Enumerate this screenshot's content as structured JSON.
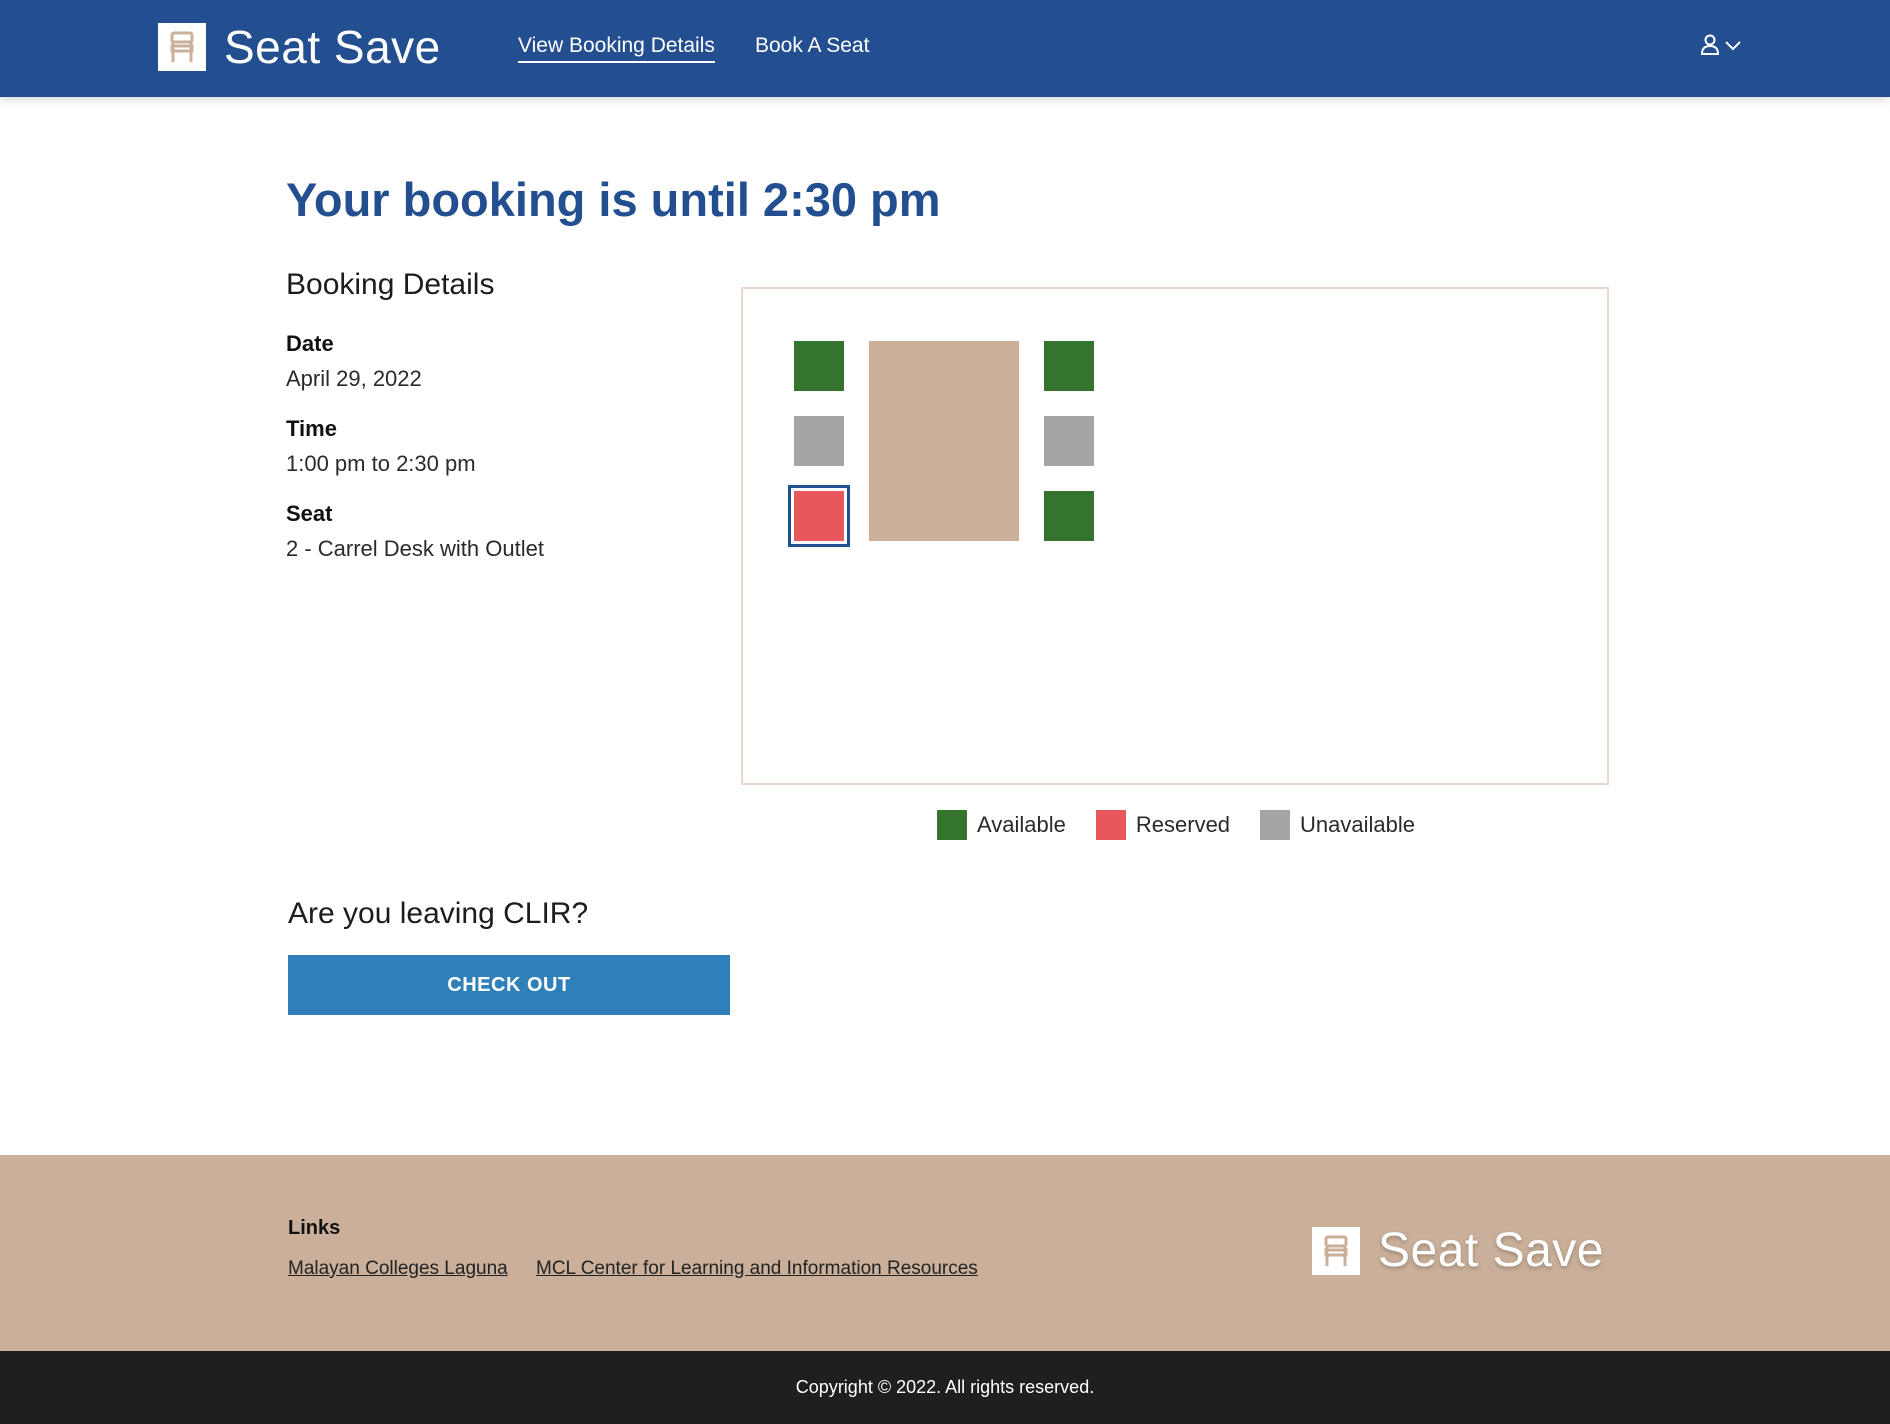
{
  "header": {
    "brand_name": "Seat Save",
    "brand_icon": "chair-icon",
    "nav": [
      {
        "label": "View Booking Details",
        "active": true
      },
      {
        "label": "Book A Seat",
        "active": false
      }
    ],
    "user_icon": "user-icon",
    "user_menu_icon": "chevron-down-icon"
  },
  "main": {
    "title": "Your booking is until 2:30 pm",
    "details_heading": "Booking Details",
    "date_label": "Date",
    "date_value": "April 29, 2022",
    "time_label": "Time",
    "time_value": "1:00 pm to 2:30 pm",
    "seat_label": "Seat",
    "seat_value": "2 - Carrel Desk with Outlet"
  },
  "seat_map": {
    "seats": [
      {
        "status": "available"
      },
      {
        "status": "unavailable"
      },
      {
        "status": "reserved",
        "selected": true
      },
      {
        "status": "available"
      },
      {
        "status": "unavailable"
      },
      {
        "status": "available"
      }
    ],
    "colors": {
      "available": "#34742c",
      "reserved": "#e8575c",
      "unavailable": "#a5a5a5",
      "desk": "#cab09a",
      "selected_outline": "#234f91"
    }
  },
  "legend": [
    {
      "label": "Available",
      "color": "#34742c"
    },
    {
      "label": "Reserved",
      "color": "#e8575c"
    },
    {
      "label": "Unavailable",
      "color": "#a5a5a5"
    }
  ],
  "checkout": {
    "question": "Are you leaving CLIR?",
    "button_label": "CHECK OUT"
  },
  "footer": {
    "links_label": "Links",
    "links": [
      "Malayan Colleges Laguna",
      "MCL Center for Learning and Information Resources"
    ],
    "brand_name": "Seat Save",
    "copyright": "Copyright © 2022. All rights reserved."
  },
  "colors": {
    "header_bg": "#234f91",
    "title": "#234f91",
    "button_bg": "#2f80b9",
    "footer_bg": "#cab09a",
    "copyright_bg": "#1f1f1f"
  }
}
